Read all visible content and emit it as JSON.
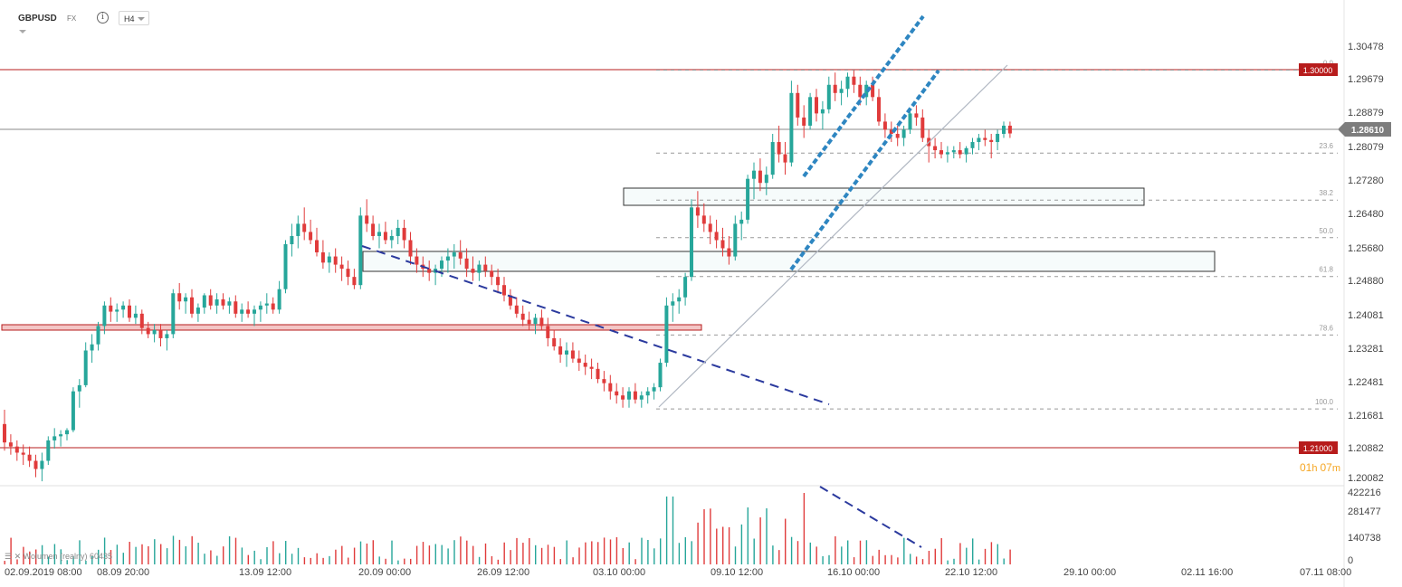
{
  "header": {
    "symbol": "GBPUSD",
    "market": "FX",
    "info_glyph": "i",
    "timeframe": "H4"
  },
  "price_axis": {
    "ticks": [
      "1.30478",
      "1.29679",
      "1.28879",
      "1.28079",
      "1.27280",
      "1.26480",
      "1.25680",
      "1.24880",
      "1.24081",
      "1.23281",
      "1.22481",
      "1.21681",
      "1.20882",
      "1.20082"
    ],
    "current_price": "1.28610",
    "level_high": "1.30000",
    "level_low": "1.21000"
  },
  "volume_axis": {
    "ticks": [
      "422216",
      "281477",
      "140738",
      "0"
    ]
  },
  "time_axis": {
    "labels": [
      "02.09.2019  08:00",
      "08.09  20:00",
      "13.09  12:00",
      "20.09  00:00",
      "26.09  12:00",
      "03.10  00:00",
      "09.10  12:00",
      "16.10  00:00",
      "22.10  12:00",
      "29.10  00:00",
      "02.11  16:00",
      "07.11  08:00"
    ]
  },
  "fibonacci": {
    "levels": [
      "0.0",
      "23.6",
      "38.2",
      "50.0",
      "61.8",
      "78.6",
      "100.0"
    ]
  },
  "countdown": {
    "hours": "01",
    "h": "h",
    "minutes": "07",
    "m": "m"
  },
  "volume_legend": "Wolumen (realny)  60435",
  "colors": {
    "up": "#26a69a",
    "down": "#e03b3b",
    "level": "#b71c1c",
    "trend": "#2b3a9e",
    "channel": "#2e86c1"
  },
  "chart_data": {
    "type": "candlestick",
    "symbol": "GBPUSD",
    "timeframe": "H4",
    "ylim": [
      1.2008,
      1.3068
    ],
    "horizontal_levels": [
      1.3,
      1.21,
      1.2861
    ],
    "fib_levels": {
      "0.0": 1.3016,
      "23.6": 1.2813,
      "38.2": 1.2698,
      "50.0": 1.2606,
      "61.8": 1.2511,
      "78.6": 1.2368,
      "100.0": 1.2187
    },
    "candles": [
      [
        1.215,
        1.2185,
        1.2085,
        1.2105
      ],
      [
        1.2105,
        1.2125,
        1.2075,
        1.2095
      ],
      [
        1.2095,
        1.211,
        1.206,
        1.208
      ],
      [
        1.208,
        1.21,
        1.205,
        1.2075
      ],
      [
        1.2075,
        1.2095,
        1.2045,
        1.206
      ],
      [
        1.206,
        1.2075,
        1.202,
        1.204
      ],
      [
        1.204,
        1.208,
        1.201,
        1.206
      ],
      [
        1.206,
        1.212,
        1.205,
        1.211
      ],
      [
        1.211,
        1.214,
        1.209,
        1.212
      ],
      [
        1.212,
        1.2135,
        1.2095,
        1.2125
      ],
      [
        1.2125,
        1.214,
        1.211,
        1.2135
      ],
      [
        1.2135,
        1.224,
        1.213,
        1.223
      ],
      [
        1.223,
        1.226,
        1.219,
        1.2245
      ],
      [
        1.2245,
        1.235,
        1.224,
        1.233
      ],
      [
        1.233,
        1.237,
        1.23,
        1.2345
      ],
      [
        1.2345,
        1.24,
        1.233,
        1.239
      ],
      [
        1.239,
        1.245,
        1.237,
        1.244
      ],
      [
        1.244,
        1.246,
        1.24,
        1.2425
      ],
      [
        1.2425,
        1.2445,
        1.24,
        1.243
      ],
      [
        1.243,
        1.245,
        1.241,
        1.244
      ],
      [
        1.244,
        1.2455,
        1.24,
        1.241
      ],
      [
        1.241,
        1.244,
        1.2395,
        1.242
      ],
      [
        1.242,
        1.243,
        1.237,
        1.2385
      ],
      [
        1.2385,
        1.24,
        1.236,
        1.237
      ],
      [
        1.237,
        1.2395,
        1.235,
        1.238
      ],
      [
        1.238,
        1.2395,
        1.234,
        1.236
      ],
      [
        1.236,
        1.238,
        1.233,
        1.237
      ],
      [
        1.237,
        1.248,
        1.236,
        1.247
      ],
      [
        1.247,
        1.2495,
        1.243,
        1.245
      ],
      [
        1.245,
        1.247,
        1.242,
        1.246
      ],
      [
        1.246,
        1.248,
        1.241,
        1.242
      ],
      [
        1.242,
        1.2445,
        1.24,
        1.2435
      ],
      [
        1.2435,
        1.247,
        1.242,
        1.2465
      ],
      [
        1.2465,
        1.248,
        1.243,
        1.244
      ],
      [
        1.244,
        1.247,
        1.242,
        1.2455
      ],
      [
        1.2455,
        1.247,
        1.243,
        1.244
      ],
      [
        1.244,
        1.246,
        1.242,
        1.245
      ],
      [
        1.245,
        1.2465,
        1.241,
        1.242
      ],
      [
        1.242,
        1.2445,
        1.24,
        1.243
      ],
      [
        1.243,
        1.245,
        1.241,
        1.242
      ],
      [
        1.242,
        1.244,
        1.239,
        1.243
      ],
      [
        1.243,
        1.245,
        1.24,
        1.244
      ],
      [
        1.244,
        1.247,
        1.242,
        1.2445
      ],
      [
        1.2445,
        1.246,
        1.242,
        1.243
      ],
      [
        1.243,
        1.25,
        1.242,
        1.248
      ],
      [
        1.248,
        1.26,
        1.247,
        1.259
      ],
      [
        1.259,
        1.264,
        1.256,
        1.261
      ],
      [
        1.261,
        1.266,
        1.258,
        1.264
      ],
      [
        1.264,
        1.268,
        1.26,
        1.262
      ],
      [
        1.262,
        1.265,
        1.259,
        1.26
      ],
      [
        1.26,
        1.263,
        1.256,
        1.257
      ],
      [
        1.257,
        1.26,
        1.253,
        1.2545
      ],
      [
        1.2545,
        1.257,
        1.252,
        1.256
      ],
      [
        1.256,
        1.258,
        1.252,
        1.254
      ],
      [
        1.254,
        1.256,
        1.25,
        1.253
      ],
      [
        1.253,
        1.255,
        1.249,
        1.251
      ],
      [
        1.251,
        1.253,
        1.248,
        1.249
      ],
      [
        1.249,
        1.268,
        1.248,
        1.266
      ],
      [
        1.266,
        1.27,
        1.262,
        1.264
      ],
      [
        1.264,
        1.266,
        1.26,
        1.261
      ],
      [
        1.261,
        1.264,
        1.258,
        1.262
      ],
      [
        1.262,
        1.2645,
        1.259,
        1.26
      ],
      [
        1.26,
        1.2625,
        1.258,
        1.261
      ],
      [
        1.261,
        1.265,
        1.259,
        1.263
      ],
      [
        1.263,
        1.265,
        1.258,
        1.26
      ],
      [
        1.26,
        1.262,
        1.254,
        1.256
      ],
      [
        1.256,
        1.258,
        1.252,
        1.254
      ],
      [
        1.254,
        1.256,
        1.251,
        1.253
      ],
      [
        1.253,
        1.255,
        1.25,
        1.252
      ],
      [
        1.252,
        1.254,
        1.249,
        1.253
      ],
      [
        1.253,
        1.256,
        1.251,
        1.255
      ],
      [
        1.255,
        1.258,
        1.252,
        1.256
      ],
      [
        1.256,
        1.259,
        1.253,
        1.257
      ],
      [
        1.257,
        1.26,
        1.254,
        1.2555
      ],
      [
        1.2555,
        1.258,
        1.251,
        1.253
      ],
      [
        1.253,
        1.256,
        1.25,
        1.252
      ],
      [
        1.252,
        1.255,
        1.25,
        1.254
      ],
      [
        1.254,
        1.256,
        1.251,
        1.2525
      ],
      [
        1.2525,
        1.254,
        1.249,
        1.251
      ],
      [
        1.251,
        1.253,
        1.247,
        1.249
      ],
      [
        1.249,
        1.251,
        1.245,
        1.2465
      ],
      [
        1.2465,
        1.248,
        1.243,
        1.244
      ],
      [
        1.244,
        1.246,
        1.241,
        1.242
      ],
      [
        1.242,
        1.244,
        1.239,
        1.2405
      ],
      [
        1.2405,
        1.2425,
        1.238,
        1.2395
      ],
      [
        1.2395,
        1.242,
        1.237,
        1.241
      ],
      [
        1.241,
        1.243,
        1.238,
        1.239
      ],
      [
        1.239,
        1.241,
        1.234,
        1.236
      ],
      [
        1.236,
        1.238,
        1.233,
        1.234
      ],
      [
        1.234,
        1.236,
        1.23,
        1.232
      ],
      [
        1.232,
        1.235,
        1.229,
        1.233
      ],
      [
        1.233,
        1.235,
        1.23,
        1.231
      ],
      [
        1.231,
        1.233,
        1.228,
        1.23
      ],
      [
        1.23,
        1.232,
        1.227,
        1.229
      ],
      [
        1.229,
        1.231,
        1.226,
        1.2285
      ],
      [
        1.2285,
        1.23,
        1.225,
        1.226
      ],
      [
        1.226,
        1.228,
        1.223,
        1.225
      ],
      [
        1.225,
        1.227,
        1.221,
        1.223
      ],
      [
        1.223,
        1.225,
        1.22,
        1.222
      ],
      [
        1.222,
        1.224,
        1.219,
        1.221
      ],
      [
        1.221,
        1.224,
        1.219,
        1.223
      ],
      [
        1.223,
        1.225,
        1.22,
        1.221
      ],
      [
        1.221,
        1.223,
        1.219,
        1.222
      ],
      [
        1.222,
        1.224,
        1.22,
        1.223
      ],
      [
        1.223,
        1.225,
        1.221,
        1.224
      ],
      [
        1.224,
        1.231,
        1.223,
        1.23
      ],
      [
        1.23,
        1.246,
        1.229,
        1.244
      ],
      [
        1.244,
        1.247,
        1.24,
        1.245
      ],
      [
        1.245,
        1.248,
        1.242,
        1.246
      ],
      [
        1.246,
        1.252,
        1.244,
        1.251
      ],
      [
        1.251,
        1.27,
        1.25,
        1.268
      ],
      [
        1.268,
        1.272,
        1.263,
        1.266
      ],
      [
        1.266,
        1.269,
        1.262,
        1.264
      ],
      [
        1.264,
        1.266,
        1.259,
        1.262
      ],
      [
        1.262,
        1.265,
        1.258,
        1.26
      ],
      [
        1.26,
        1.263,
        1.256,
        1.258
      ],
      [
        1.258,
        1.261,
        1.254,
        1.256
      ],
      [
        1.256,
        1.266,
        1.255,
        1.264
      ],
      [
        1.264,
        1.267,
        1.26,
        1.265
      ],
      [
        1.265,
        1.276,
        1.264,
        1.275
      ],
      [
        1.275,
        1.279,
        1.27,
        1.277
      ],
      [
        1.277,
        1.28,
        1.272,
        1.274
      ],
      [
        1.274,
        1.278,
        1.271,
        1.276
      ],
      [
        1.276,
        1.286,
        1.275,
        1.284
      ],
      [
        1.284,
        1.288,
        1.279,
        1.281
      ],
      [
        1.281,
        1.284,
        1.276,
        1.279
      ],
      [
        1.279,
        1.299,
        1.278,
        1.296
      ],
      [
        1.296,
        1.298,
        1.288,
        1.29
      ],
      [
        1.29,
        1.293,
        1.285,
        1.288
      ],
      [
        1.288,
        1.296,
        1.287,
        1.295
      ],
      [
        1.295,
        1.297,
        1.289,
        1.291
      ],
      [
        1.291,
        1.294,
        1.287,
        1.292
      ],
      [
        1.292,
        1.3,
        1.291,
        1.298
      ],
      [
        1.298,
        1.301,
        1.294,
        1.296
      ],
      [
        1.296,
        1.299,
        1.293,
        1.297
      ],
      [
        1.297,
        1.301,
        1.295,
        1.3
      ],
      [
        1.3,
        1.3016,
        1.296,
        1.298
      ],
      [
        1.298,
        1.3,
        1.293,
        1.295
      ],
      [
        1.295,
        1.299,
        1.293,
        1.298
      ],
      [
        1.298,
        1.3,
        1.294,
        1.295
      ],
      [
        1.295,
        1.297,
        1.288,
        1.289
      ],
      [
        1.289,
        1.291,
        1.285,
        1.287
      ],
      [
        1.287,
        1.289,
        1.284,
        1.286
      ],
      [
        1.286,
        1.288,
        1.283,
        1.285
      ],
      [
        1.285,
        1.288,
        1.283,
        1.287
      ],
      [
        1.287,
        1.292,
        1.286,
        1.291
      ],
      [
        1.291,
        1.293,
        1.288,
        1.29
      ],
      [
        1.29,
        1.292,
        1.284,
        1.285
      ],
      [
        1.285,
        1.287,
        1.279,
        1.283
      ],
      [
        1.283,
        1.285,
        1.28,
        1.282
      ],
      [
        1.282,
        1.284,
        1.28,
        1.281
      ],
      [
        1.281,
        1.283,
        1.279,
        1.2815
      ],
      [
        1.2815,
        1.283,
        1.28,
        1.282
      ],
      [
        1.282,
        1.284,
        1.28,
        1.281
      ],
      [
        1.281,
        1.283,
        1.279,
        1.2825
      ],
      [
        1.2825,
        1.285,
        1.281,
        1.284
      ],
      [
        1.284,
        1.286,
        1.282,
        1.285
      ],
      [
        1.285,
        1.287,
        1.283,
        1.2845
      ],
      [
        1.2845,
        1.286,
        1.28,
        1.284
      ],
      [
        1.284,
        1.287,
        1.282,
        1.286
      ],
      [
        1.286,
        1.289,
        1.285,
        1.288
      ],
      [
        1.288,
        1.289,
        1.285,
        1.2861
      ]
    ],
    "volume_max": 422216
  }
}
